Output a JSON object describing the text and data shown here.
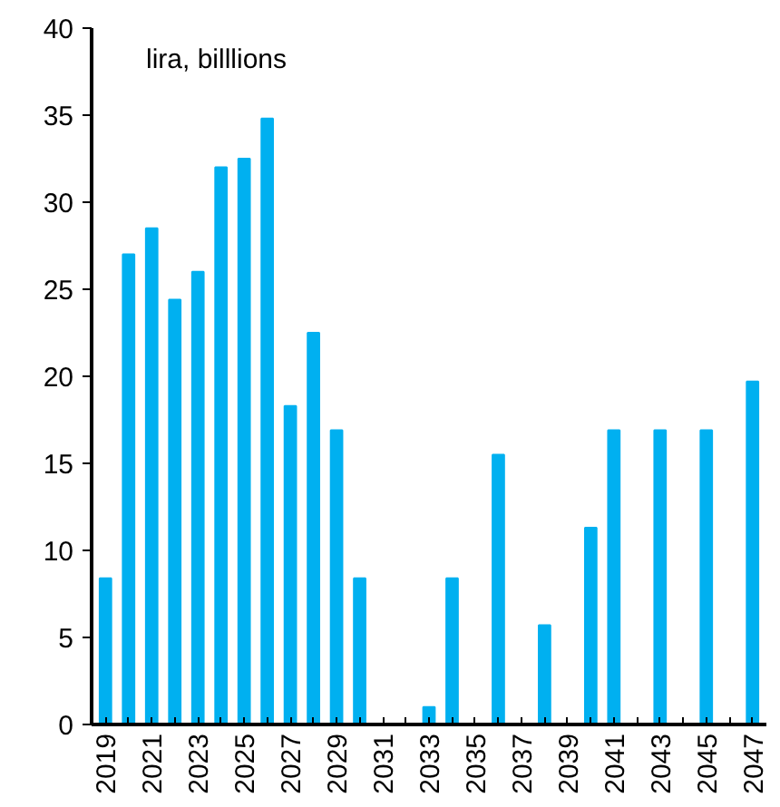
{
  "chart_data": {
    "type": "bar",
    "categories": [
      "2019",
      null,
      "2021",
      null,
      "2023",
      null,
      "2025",
      null,
      "2027",
      null,
      "2029",
      null,
      "2031",
      null,
      "2033",
      null,
      "2035",
      null,
      "2037",
      null,
      "2039",
      null,
      "2041",
      null,
      "2043",
      null,
      "2045",
      null,
      "2047"
    ],
    "values": [
      8.4,
      27,
      28.5,
      24.4,
      26,
      32,
      32.5,
      34.8,
      18.3,
      22.5,
      16.9,
      8.4,
      0,
      0,
      1.0,
      8.4,
      0,
      15.5,
      0,
      5.7,
      0,
      11.3,
      16.9,
      0,
      16.9,
      0,
      16.9,
      0,
      19.7
    ],
    "color": "#00b0f0",
    "ylim": [
      0,
      40
    ],
    "yticks": [
      0,
      5,
      10,
      15,
      20,
      25,
      30,
      35,
      40
    ],
    "annotations": [
      "lira, billlions"
    ],
    "grid": false
  }
}
